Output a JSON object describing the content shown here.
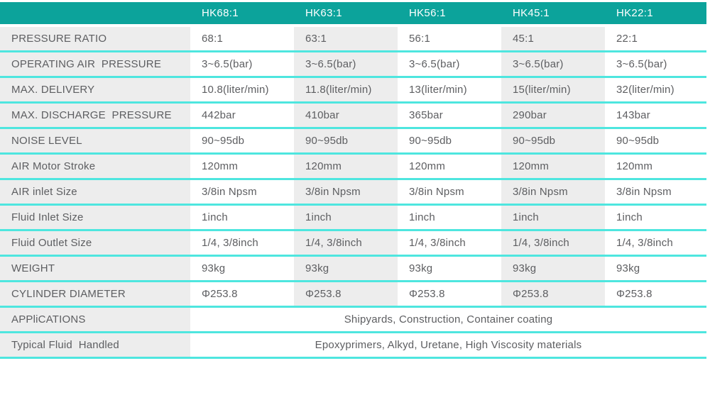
{
  "colors": {
    "header_bg": "#0ca39b",
    "header_text": "#ffffff",
    "alt_cell_bg": "#ededed",
    "row_separator": "#4ee6df",
    "body_text": "#5d5e61"
  },
  "table": {
    "columns": [
      "",
      "HK68:1",
      "HK63:1",
      "HK56:1",
      "HK45:1",
      "HK22:1"
    ],
    "rows": [
      {
        "label": "PRESSURE RATIO",
        "values": [
          "68:1",
          "63:1",
          "56:1",
          "45:1",
          "22:1"
        ]
      },
      {
        "label": "OPERATING AIR  PRESSURE",
        "values": [
          "3~6.5(bar)",
          "3~6.5(bar)",
          "3~6.5(bar)",
          "3~6.5(bar)",
          "3~6.5(bar)"
        ]
      },
      {
        "label": "MAX. DELIVERY",
        "values": [
          "10.8(liter/min)",
          "11.8(liter/min)",
          "13(liter/min)",
          "15(liter/min)",
          "32(liter/min)"
        ]
      },
      {
        "label": "MAX. DISCHARGE  PRESSURE",
        "values": [
          "442bar",
          "410bar",
          "365bar",
          "290bar",
          "143bar"
        ]
      },
      {
        "label": "NOISE LEVEL",
        "values": [
          "90~95db",
          "90~95db",
          "90~95db",
          "90~95db",
          "90~95db"
        ]
      },
      {
        "label": "AIR Motor Stroke",
        "values": [
          "120mm",
          "120mm",
          "120mm",
          "120mm",
          "120mm"
        ]
      },
      {
        "label": "AIR inlet Size",
        "values": [
          "3/8in Npsm",
          "3/8in Npsm",
          "3/8in Npsm",
          "3/8in Npsm",
          "3/8in Npsm"
        ]
      },
      {
        "label": "Fluid Inlet Size",
        "values": [
          "1inch",
          "1inch",
          "1inch",
          "1inch",
          "1inch"
        ]
      },
      {
        "label": "Fluid Outlet Size",
        "values": [
          "1/4, 3/8inch",
          "1/4, 3/8inch",
          "1/4, 3/8inch",
          "1/4, 3/8inch",
          "1/4, 3/8inch"
        ]
      },
      {
        "label": "WEIGHT",
        "values": [
          "93kg",
          "93kg",
          "93kg",
          "93kg",
          "93kg"
        ]
      },
      {
        "label": "CYLINDER DIAMETER",
        "values": [
          "Φ253.8",
          "Φ253.8",
          "Φ253.8",
          "Φ253.8",
          "Φ253.8"
        ]
      },
      {
        "label": "APPliCATIONS",
        "span": "Shipyards, Construction, Container coating"
      },
      {
        "label": "Typical Fluid  Handled",
        "span": "Epoxyprimers, Alkyd, Uretane, High Viscosity materials"
      }
    ]
  }
}
